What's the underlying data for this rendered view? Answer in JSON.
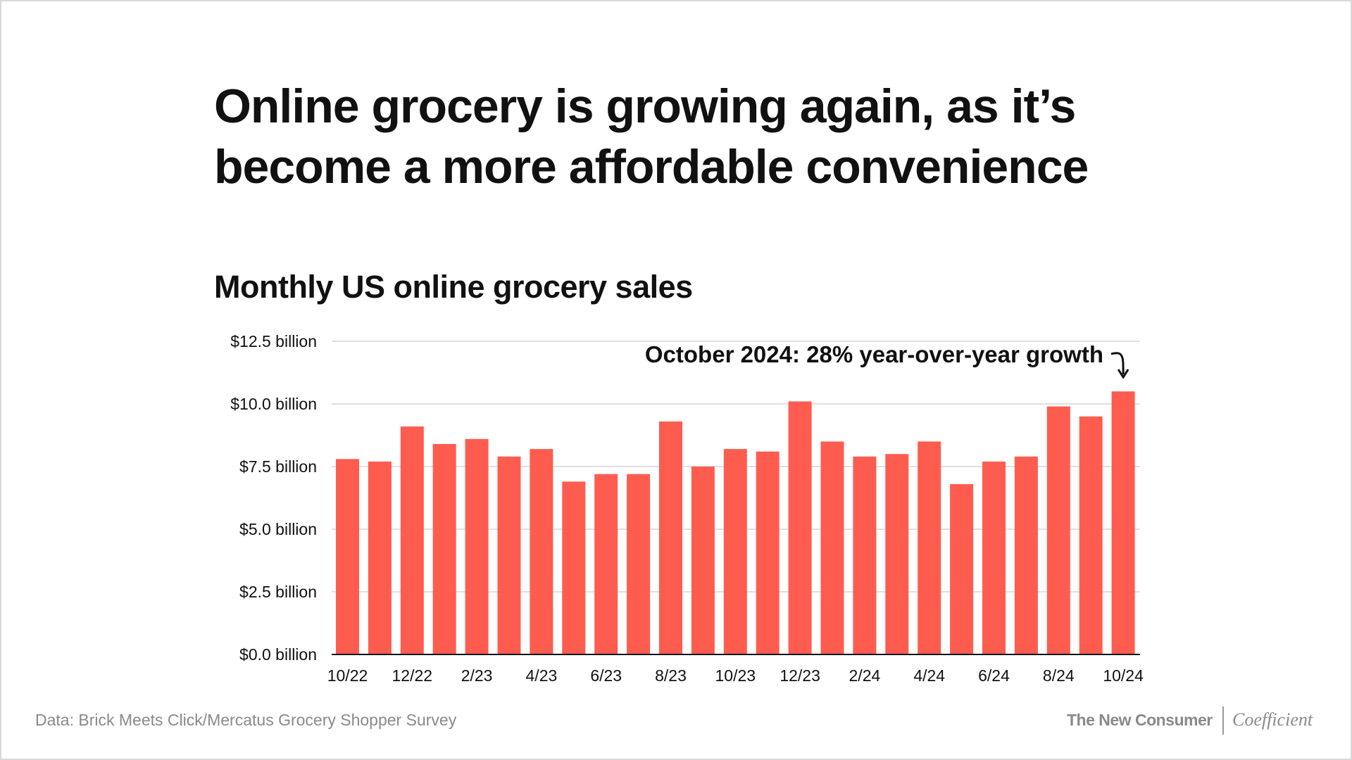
{
  "title_line1": "Online grocery is growing again, as it’s",
  "title_line2": "become a more affordable convenience",
  "footer": {
    "source": "Data: Brick Meets Click/Mercatus Grocery Shopper Survey",
    "brand_primary": "The New Consumer",
    "brand_secondary": "Coefficient"
  },
  "colors": {
    "bar": "#ff5c50",
    "grid": "#d6d6d6",
    "text": "#111111"
  },
  "chart_data": {
    "type": "bar",
    "title": "Monthly US online grocery sales",
    "categories": [
      "10/22",
      "11/22",
      "12/22",
      "1/23",
      "2/23",
      "3/23",
      "4/23",
      "5/23",
      "6/23",
      "7/23",
      "8/23",
      "9/23",
      "10/23",
      "11/23",
      "12/23",
      "1/24",
      "2/24",
      "3/24",
      "4/24",
      "5/24",
      "6/24",
      "7/24",
      "8/24",
      "9/24",
      "10/24"
    ],
    "values": [
      7.8,
      7.7,
      9.1,
      8.4,
      8.6,
      7.9,
      8.2,
      6.9,
      7.2,
      7.2,
      9.3,
      7.5,
      8.2,
      8.1,
      10.1,
      8.5,
      7.9,
      8.0,
      8.5,
      6.8,
      7.7,
      7.9,
      9.9,
      9.5,
      10.5
    ],
    "unit": "$ billion",
    "ylim": [
      0,
      12.5
    ],
    "yticks": [
      0,
      2.5,
      5.0,
      7.5,
      10.0,
      12.5
    ],
    "ytick_labels": [
      "$0.0 billion",
      "$2.5 billion",
      "$5.0 billion",
      "$7.5 billion",
      "$10.0 billion",
      "$12.5 billion"
    ],
    "xtick_labels": [
      "10/22",
      "12/22",
      "2/23",
      "4/23",
      "6/23",
      "8/23",
      "10/23",
      "12/23",
      "2/24",
      "4/24",
      "6/24",
      "8/24",
      "10/24"
    ],
    "grid": true,
    "annotation": {
      "text": "October 2024: 28% year-over-year growth",
      "target": "10/24"
    }
  }
}
